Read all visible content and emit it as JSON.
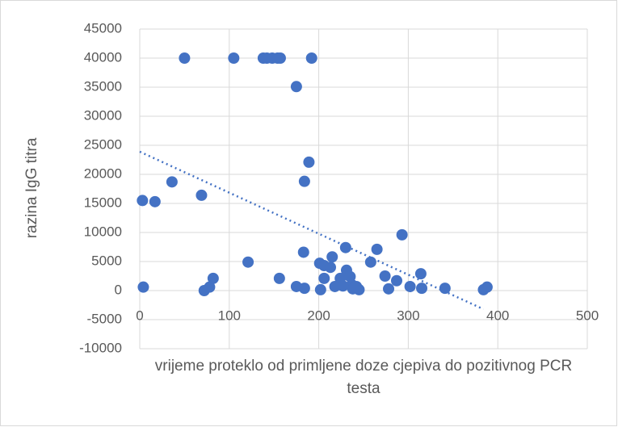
{
  "chart_data": {
    "type": "scatter",
    "xlabel": "vrijeme proteklo od primljene doze cjepiva do pozitivnog PCR testa",
    "ylabel": "razina IgG titra",
    "color": "#4472c4",
    "grid": true,
    "xlim": [
      0,
      500
    ],
    "xticks": [
      0,
      100,
      200,
      300,
      400,
      500
    ],
    "ylim": [
      -10000,
      45000
    ],
    "yticks": [
      -10000,
      -5000,
      0,
      5000,
      10000,
      15000,
      20000,
      25000,
      30000,
      35000,
      40000,
      45000
    ],
    "x": [
      4,
      3,
      17,
      36,
      50,
      69,
      72,
      78,
      82,
      105,
      121,
      138,
      142,
      148,
      154,
      157,
      156,
      175,
      175,
      184,
      183,
      184,
      189,
      192,
      201,
      202,
      206,
      206,
      213,
      215,
      218,
      224,
      227,
      231,
      230,
      235,
      237,
      238,
      242,
      245,
      258,
      265,
      274,
      278,
      287,
      293,
      302,
      314,
      315,
      341,
      384,
      388
    ],
    "values": [
      600,
      15500,
      15300,
      18700,
      40000,
      16400,
      0,
      600,
      2100,
      40000,
      4900,
      40000,
      40000,
      40000,
      40000,
      40000,
      2100,
      35100,
      700,
      400,
      6600,
      18800,
      22100,
      40000,
      4700,
      150,
      4300,
      2100,
      4000,
      5800,
      700,
      2100,
      800,
      3500,
      7400,
      2400,
      1000,
      300,
      700,
      150,
      4900,
      7100,
      2500,
      300,
      1700,
      9600,
      700,
      2900,
      400,
      400,
      150,
      600
    ],
    "trendline": {
      "x": [
        0,
        384
      ],
      "values": [
        23900,
        -3200
      ]
    }
  }
}
